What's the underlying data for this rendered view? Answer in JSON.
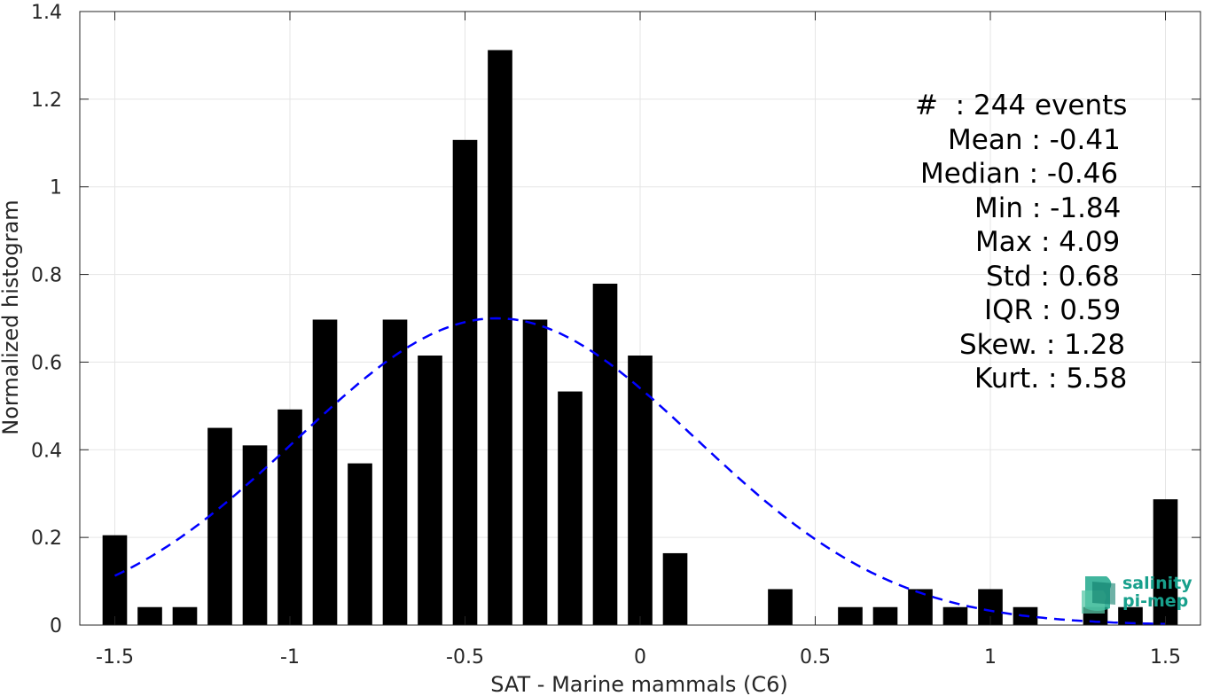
{
  "chart_data": {
    "type": "bar",
    "xlabel": "SAT - Marine mammals (C6)",
    "ylabel": "Normalized histogram",
    "xlim": [
      -1.6,
      1.6
    ],
    "ylim": [
      0,
      1.4
    ],
    "xticks": [
      -1.5,
      -1,
      -0.5,
      0,
      0.5,
      1,
      1.5
    ],
    "xtick_labels": [
      "-1.5",
      "-1",
      "-0.5",
      "0",
      "0.5",
      "1",
      "1.5"
    ],
    "yticks": [
      0,
      0.2,
      0.4,
      0.6,
      0.8,
      1,
      1.2,
      1.4
    ],
    "ytick_labels": [
      "0",
      "0.2",
      "0.4",
      "0.6",
      "0.8",
      "1",
      "1.2",
      "1.4"
    ],
    "grid": true,
    "bar_width": 0.07,
    "bar_color": "#000000",
    "x": [
      -1.5,
      -1.4,
      -1.3,
      -1.2,
      -1.1,
      -1.0,
      -0.9,
      -0.8,
      -0.7,
      -0.6,
      -0.5,
      -0.4,
      -0.3,
      -0.2,
      -0.1,
      0.0,
      0.1,
      0.2,
      0.3,
      0.4,
      0.5,
      0.6,
      0.7,
      0.8,
      0.9,
      1.0,
      1.1,
      1.2,
      1.3,
      1.4,
      1.5
    ],
    "values": [
      0.205,
      0.041,
      0.041,
      0.45,
      0.41,
      0.492,
      0.697,
      0.369,
      0.697,
      0.615,
      1.107,
      1.312,
      0.697,
      0.533,
      0.779,
      0.615,
      0.164,
      0,
      0,
      0.082,
      0,
      0.041,
      0.041,
      0.082,
      0.041,
      0.082,
      0.041,
      0,
      0.041,
      0.041,
      0.287
    ],
    "fit_curve": {
      "type": "normal",
      "mean": -0.41,
      "std": 0.57,
      "color": "#0000ff",
      "style": "dashed"
    },
    "stats": [
      {
        "label": "#  : 244 events"
      },
      {
        "label": "Mean : -0.41"
      },
      {
        "label": "Median : -0.46"
      },
      {
        "label": "Min : -1.84"
      },
      {
        "label": "Max : 4.09"
      },
      {
        "label": "Std : 0.68"
      },
      {
        "label": "IQR : 0.59"
      },
      {
        "label": "Skew. : 1.28"
      },
      {
        "label": "Kurt. : 5.58"
      }
    ]
  },
  "logo": {
    "line1": "salinity",
    "line2": "pi-mep"
  }
}
